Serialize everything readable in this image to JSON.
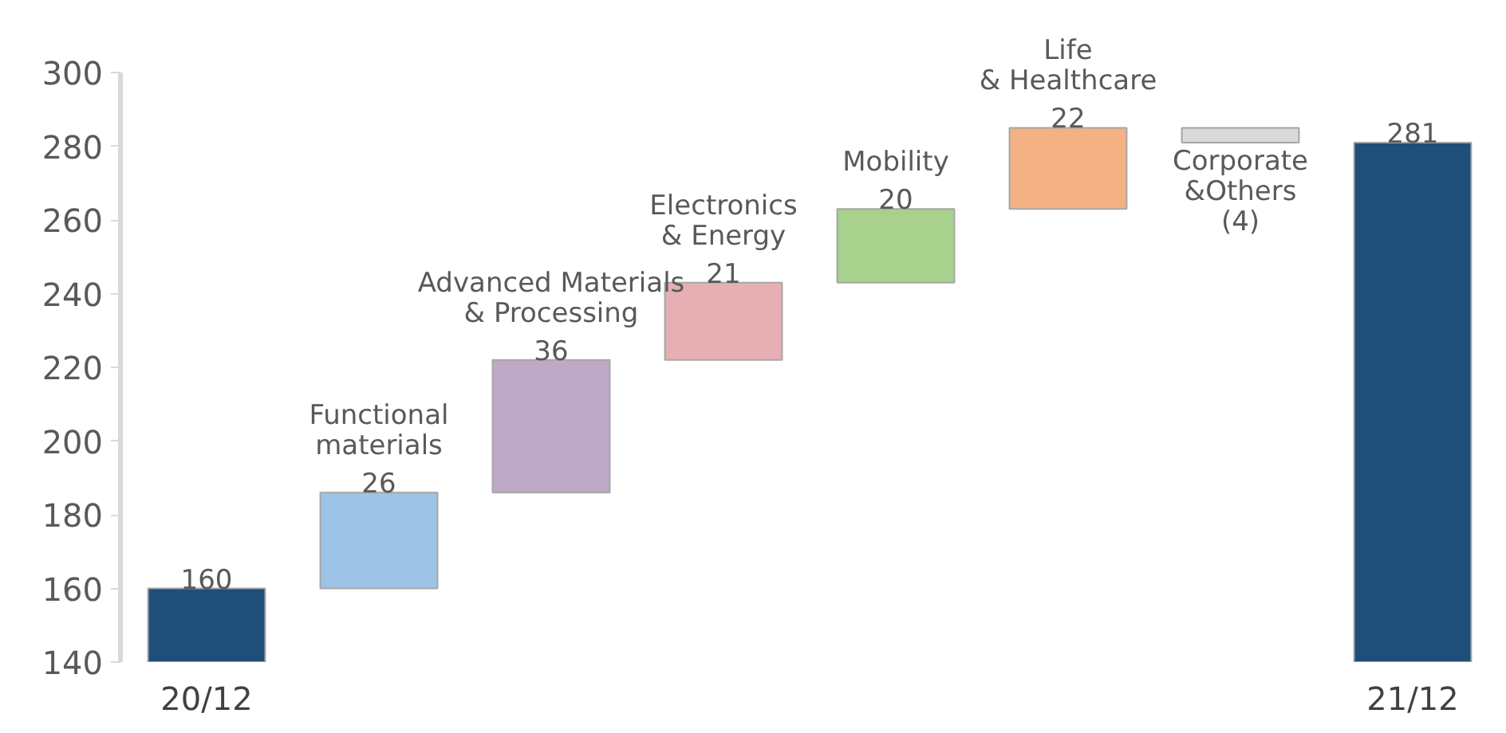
{
  "chart_data": {
    "type": "bar",
    "categories": [
      "20/12",
      "Functional\nmaterials",
      "Advanced Materials\n& Processing",
      "Electronics\n& Energy",
      "Mobility",
      "Life\n& Healthcare",
      "Corporate\n&Others",
      "21/12"
    ],
    "values": [
      160,
      26,
      36,
      21,
      20,
      22,
      -4,
      281
    ],
    "base": [
      0,
      160,
      186,
      222,
      243,
      263,
      285,
      0
    ],
    "colors": [
      "#1f4e79",
      "#9dc3e6",
      "#bea9c6",
      "#e5afb4",
      "#a9d18e",
      "#f4b183",
      "#d9d9d9",
      "#1f4e79"
    ],
    "value_labels": [
      "160",
      "26",
      "36",
      "21",
      "20",
      "22",
      "(4)",
      "281"
    ],
    "ylim": [
      140,
      300
    ],
    "yticks": [
      140,
      160,
      180,
      200,
      220,
      240,
      260,
      280,
      300
    ],
    "grid": false
  }
}
